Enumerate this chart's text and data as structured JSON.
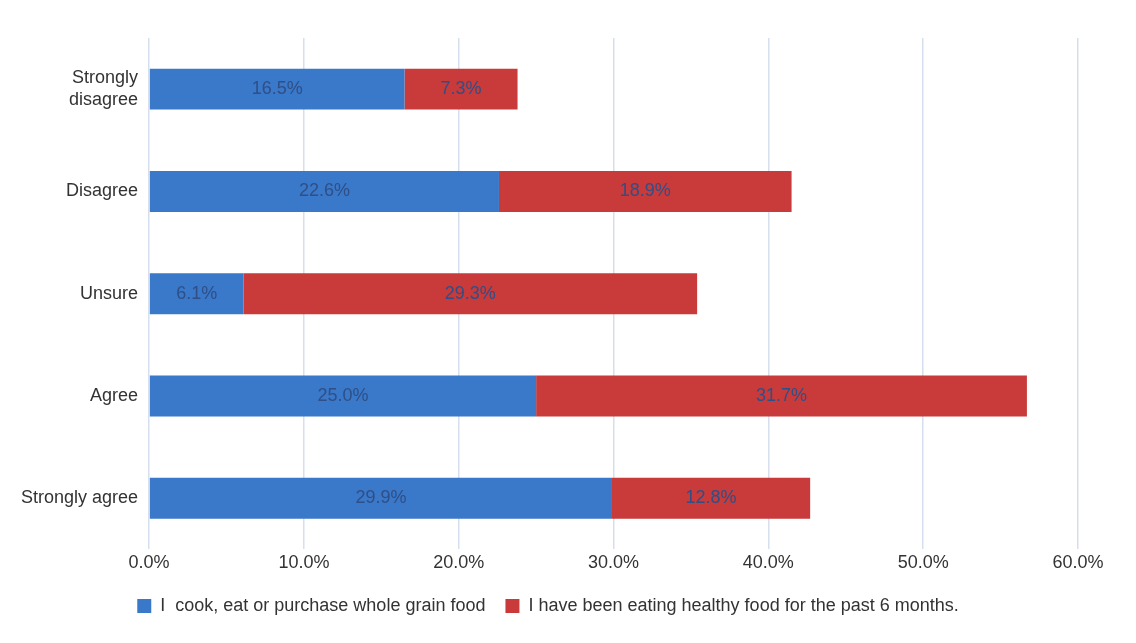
{
  "chart_data": {
    "type": "bar",
    "orientation": "horizontal",
    "stacked": true,
    "categories": [
      "Strongly disagree",
      "Disagree",
      "Unsure",
      "Agree",
      "Strongly agree"
    ],
    "series": [
      {
        "name": "I  cook, eat or purchase whole grain food",
        "color": "#3a78c9",
        "values": [
          16.5,
          22.6,
          6.1,
          25.0,
          29.9
        ],
        "value_labels": [
          "16.5%",
          "22.6%",
          "6.1%",
          "25.0%",
          "29.9%"
        ]
      },
      {
        "name": "I have been eating healthy food for the past 6 months.",
        "color": "#c93a3a",
        "values": [
          7.3,
          18.9,
          29.3,
          31.7,
          12.8
        ],
        "value_labels": [
          "7.3%",
          "18.9%",
          "29.3%",
          "31.7%",
          "12.8%"
        ]
      }
    ],
    "xlim": [
      0,
      60
    ],
    "xticks": [
      {
        "value": 0,
        "label": "0.0%"
      },
      {
        "value": 10,
        "label": "10.0%"
      },
      {
        "value": 20,
        "label": "20.0%"
      },
      {
        "value": 30,
        "label": "30.0%"
      },
      {
        "value": 40,
        "label": "40.0%"
      },
      {
        "value": 50,
        "label": "50.0%"
      },
      {
        "value": 60,
        "label": "60.0%"
      }
    ],
    "grid": "x",
    "legend": "bottom"
  }
}
